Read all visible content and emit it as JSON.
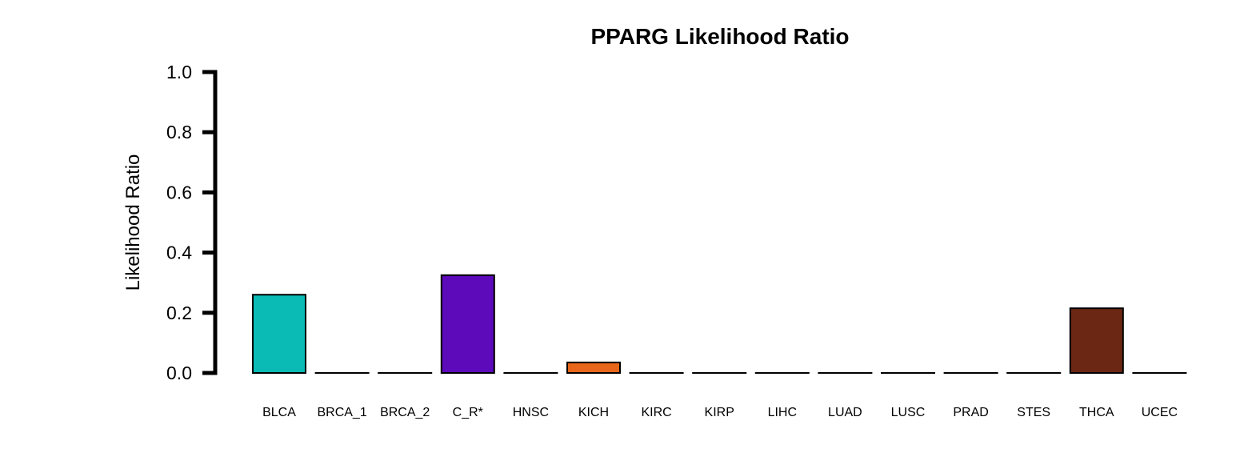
{
  "chart_data": {
    "type": "bar",
    "title": "PPARG Likelihood Ratio",
    "xlabel": "",
    "ylabel": "Likelihood Ratio",
    "ylim": [
      0,
      1.0
    ],
    "yticks": [
      "0.0",
      "0.2",
      "0.4",
      "0.6",
      "0.8",
      "1.0"
    ],
    "grid": false,
    "categories": [
      "BLCA",
      "BRCA_1",
      "BRCA_2",
      "C_R*",
      "HNSC",
      "KICH",
      "KIRC",
      "KIRP",
      "LIHC",
      "LUAD",
      "LUSC",
      "PRAD",
      "STES",
      "THCA",
      "UCEC"
    ],
    "values": [
      0.26,
      0.0,
      0.0,
      0.325,
      0.0,
      0.035,
      0.0,
      0.0,
      0.0,
      0.0,
      0.0,
      0.0,
      0.0,
      0.215,
      0.0
    ],
    "colors": [
      "#0ABAB5",
      "#FFFFFF",
      "#FFFFFF",
      "#5D0ABA",
      "#FFFFFF",
      "#E8661A",
      "#FFFFFF",
      "#FFFFFF",
      "#FFFFFF",
      "#FFFFFF",
      "#FFFFFF",
      "#FFFFFF",
      "#FFFFFF",
      "#6B2713",
      "#FFFFFF"
    ]
  }
}
